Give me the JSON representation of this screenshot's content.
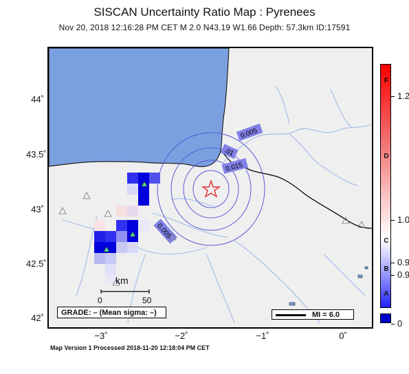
{
  "title": "SISCAN Uncertainty Ratio Map : Pyrenees",
  "subtitle": "Nov 20, 2018 12:16:28 PM CET   M 2.0    N43.19 W1.66   Depth: 57.3km    ID:17591",
  "footer": "Map Version 1 Processed 2018-11-20 12:18:04 PM CET",
  "y_axis_labels": [
    "44˚",
    "43.5˚",
    "43˚",
    "42.5˚",
    "42˚"
  ],
  "x_axis_labels": [
    "−3˚",
    "−2˚",
    "−1˚",
    "0˚"
  ],
  "contour_labels": [
    "0.005",
    ".01",
    "0.015",
    "0.005"
  ],
  "grade_box": "GRADE: – (Mean sigma: –)",
  "mi_legend": "MI = 6.0",
  "scale_bar": {
    "unit": "km",
    "ticks": [
      "0",
      "50"
    ]
  },
  "colorbar": {
    "grade_letters": [
      "F",
      "D",
      "C",
      "B",
      "A"
    ],
    "tick_labels": [
      "1.2",
      "1.0",
      "0.9",
      "0.9",
      "0"
    ]
  },
  "colors": {
    "ocean": "#7aa0e0",
    "land": "#efefef",
    "epicenter": "#e03030",
    "station": "#55dd88",
    "contour": "#5a5ad8",
    "cell_dark": "#0000dd",
    "cell_light": "#b8b8f0"
  },
  "epicenter": {
    "lat": 43.19,
    "lon": -1.66
  }
}
